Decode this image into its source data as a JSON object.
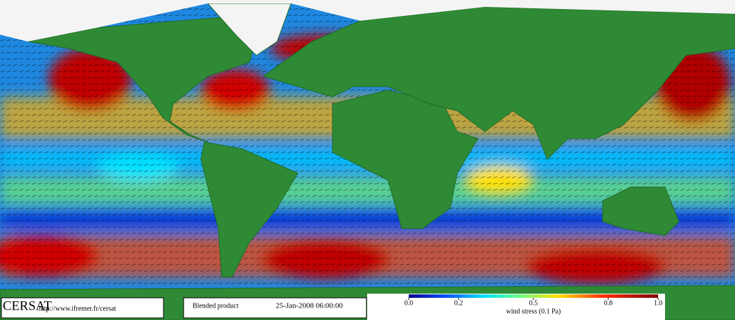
{
  "footer": {
    "logo": "CERSAT",
    "url": "http://www.ifremer.fr/cersat",
    "product": "Blended product",
    "timestamp": "25-Jan-2008 06:00:00"
  },
  "colorbar": {
    "label": "wind stress (0.1 Pa)",
    "lim": [
      0,
      1
    ],
    "ticks": [
      {
        "value": 0,
        "label": "0.0"
      },
      0.2,
      0.5,
      0.8,
      {
        "value": 1,
        "label": "1.0"
      }
    ]
  }
}
